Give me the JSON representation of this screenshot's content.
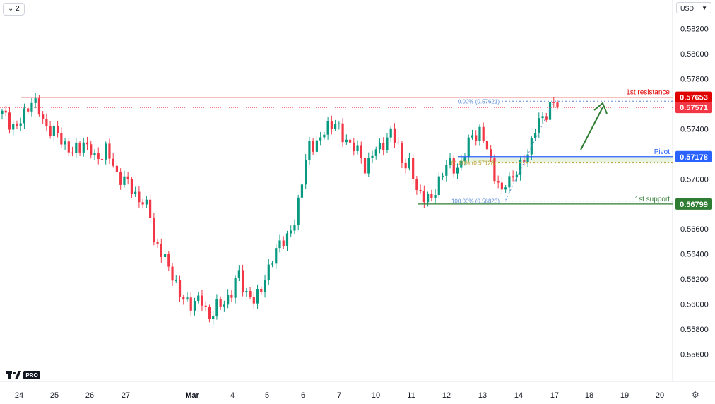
{
  "toolbar": {
    "interval_chip": "2",
    "currency": "USD"
  },
  "colors": {
    "up": "#089981",
    "down": "#f23645",
    "resistance": "#e00000",
    "pivot": "#2962ff",
    "support": "#2e7d32",
    "fib": "#5b8bd6",
    "fib_mid": "#b8a030",
    "arrow": "#2e7d32",
    "grid": "#f0f3fa",
    "axis_text": "#131722"
  },
  "chart_data": {
    "type": "candlestick",
    "y_axis": {
      "range": [
        0.5542,
        0.5838
      ],
      "ticks": [
        "0.58200",
        "0.58000",
        "0.57800",
        "0.57400",
        "0.57000",
        "0.56600",
        "0.56400",
        "0.56200",
        "0.56000",
        "0.55800",
        "0.55600"
      ]
    },
    "x_axis": {
      "labels": [
        "24",
        "25",
        "26",
        "27",
        "Mar",
        "4",
        "5",
        "6",
        "7",
        "10",
        "11",
        "12",
        "13",
        "14",
        "17",
        "18",
        "19",
        "20"
      ]
    },
    "levels": [
      {
        "name": "1st resistance",
        "value": 0.57653,
        "label": "0.57653",
        "color": "#e00000"
      },
      {
        "name": "Pivot",
        "value": 0.57178,
        "label": "0.57178",
        "color": "#2962ff"
      },
      {
        "name": "1st support",
        "value": 0.56799,
        "label": "0.56799",
        "color": "#2e7d32"
      }
    ],
    "last_price": {
      "value": 0.57571,
      "label": "0.57571"
    },
    "fibonacci": [
      {
        "label": "0.00% (0.57621)",
        "value": 0.57621
      },
      {
        "label": "61.80% (0.57128)",
        "value": 0.57128
      },
      {
        "label": "100.00% (0.56823)",
        "value": 0.56823
      }
    ],
    "close_path": [
      [
        0,
        0.5752
      ],
      [
        4,
        0.574
      ],
      [
        8,
        0.5764
      ],
      [
        12,
        0.5742
      ],
      [
        16,
        0.5732
      ],
      [
        19,
        0.572
      ],
      [
        22,
        0.573
      ],
      [
        25,
        0.5716
      ],
      [
        28,
        0.5723
      ],
      [
        31,
        0.5704
      ],
      [
        34,
        0.5696
      ],
      [
        37,
        0.5684
      ],
      [
        40,
        0.5673
      ],
      [
        41,
        0.5652
      ],
      [
        43,
        0.564
      ],
      [
        46,
        0.5625
      ],
      [
        48,
        0.5605
      ],
      [
        51,
        0.5601
      ],
      [
        54,
        0.5602
      ],
      [
        56,
        0.559
      ],
      [
        59,
        0.56
      ],
      [
        62,
        0.5608
      ],
      [
        64,
        0.5625
      ],
      [
        66,
        0.5608
      ],
      [
        68,
        0.5601
      ],
      [
        70,
        0.5615
      ],
      [
        72,
        0.5626
      ],
      [
        75,
        0.5652
      ],
      [
        77,
        0.565
      ],
      [
        79,
        0.5667
      ],
      [
        81,
        0.5699
      ],
      [
        83,
        0.5726
      ],
      [
        86,
        0.5732
      ],
      [
        88,
        0.5741
      ],
      [
        90,
        0.5747
      ],
      [
        92,
        0.5731
      ],
      [
        95,
        0.5728
      ],
      [
        98,
        0.5708
      ],
      [
        100,
        0.5722
      ],
      [
        102,
        0.5723
      ],
      [
        105,
        0.5739
      ],
      [
        108,
        0.5715
      ],
      [
        110,
        0.5712
      ],
      [
        112,
        0.569
      ],
      [
        114,
        0.5688
      ],
      [
        116,
        0.5681
      ],
      [
        118,
        0.57
      ],
      [
        120,
        0.5712
      ],
      [
        122,
        0.5708
      ],
      [
        124,
        0.5713
      ],
      [
        127,
        0.5735
      ],
      [
        129,
        0.5738
      ],
      [
        131,
        0.5723
      ],
      [
        133,
        0.5705
      ],
      [
        135,
        0.5687
      ],
      [
        136,
        0.5696
      ],
      [
        138,
        0.5704
      ],
      [
        140,
        0.5708
      ],
      [
        142,
        0.5722
      ],
      [
        144,
        0.574
      ],
      [
        146,
        0.5748
      ],
      [
        148,
        0.5759
      ],
      [
        149,
        0.5761
      ],
      [
        150,
        0.5757
      ]
    ]
  }
}
